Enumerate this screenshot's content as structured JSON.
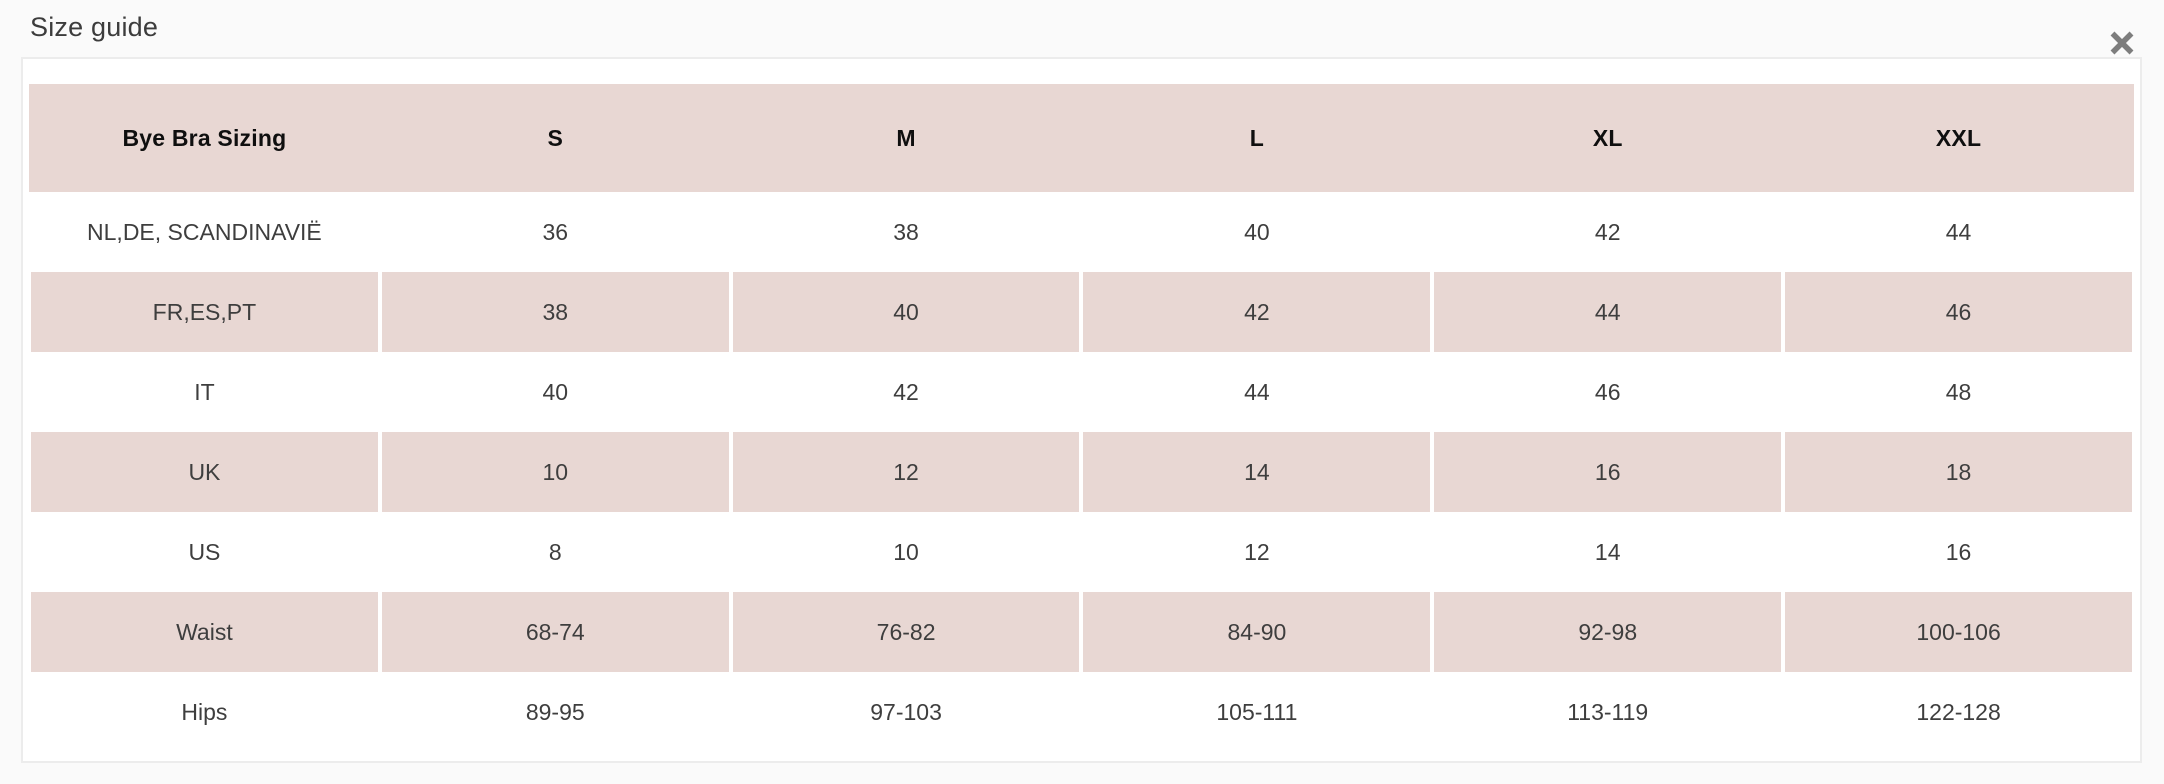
{
  "modal": {
    "title": "Size guide"
  },
  "icons": {
    "close": "x-mark"
  },
  "colors": {
    "row_pink": "#e8d7d3",
    "panel_bg": "#ffffff",
    "panel_border": "#ececec",
    "page_bg": "#fafafa",
    "close_icon": "#7d7d7d",
    "header_text": "#0f0f0f",
    "cell_text": "#3e3e3e"
  },
  "table": {
    "columns": [
      "Bye Bra Sizing",
      "S",
      "M",
      "L",
      "XL",
      "XXL"
    ],
    "rows": [
      {
        "label": "NL,DE, SCANDINAVIË",
        "values": [
          "36",
          "38",
          "40",
          "42",
          "44"
        ]
      },
      {
        "label": "FR,ES,PT",
        "values": [
          "38",
          "40",
          "42",
          "44",
          "46"
        ]
      },
      {
        "label": "IT",
        "values": [
          "40",
          "42",
          "44",
          "46",
          "48"
        ]
      },
      {
        "label": "UK",
        "values": [
          "10",
          "12",
          "14",
          "16",
          "18"
        ]
      },
      {
        "label": "US",
        "values": [
          "8",
          "10",
          "12",
          "14",
          "16"
        ]
      },
      {
        "label": "Waist",
        "values": [
          "68-74",
          "76-82",
          "84-90",
          "92-98",
          "100-106"
        ]
      },
      {
        "label": "Hips",
        "values": [
          "89-95",
          "97-103",
          "105-111",
          "113-119",
          "122-128"
        ]
      }
    ]
  }
}
